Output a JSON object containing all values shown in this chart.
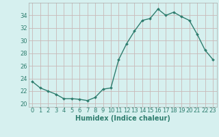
{
  "x": [
    0,
    1,
    2,
    3,
    4,
    5,
    6,
    7,
    8,
    9,
    10,
    11,
    12,
    13,
    14,
    15,
    16,
    17,
    18,
    19,
    20,
    21,
    22,
    23
  ],
  "y": [
    23.5,
    22.5,
    22.0,
    21.5,
    20.8,
    20.8,
    20.7,
    20.5,
    21.0,
    22.3,
    22.5,
    27.0,
    29.5,
    31.5,
    33.2,
    33.5,
    35.0,
    34.0,
    34.5,
    33.8,
    33.2,
    31.0,
    28.5,
    27.0
  ],
  "line_color": "#2e7d6e",
  "marker": "D",
  "marker_size": 2.0,
  "bg_color": "#d6f0ef",
  "grid_color_h": "#c8b8b8",
  "grid_color_v": "#c8b8b8",
  "tick_color": "#2e7d6e",
  "xlabel": "Humidex (Indice chaleur)",
  "xlabel_fontsize": 7,
  "ylim": [
    19.5,
    36
  ],
  "yticks": [
    20,
    22,
    24,
    26,
    28,
    30,
    32,
    34
  ],
  "xticks": [
    0,
    1,
    2,
    3,
    4,
    5,
    6,
    7,
    8,
    9,
    10,
    11,
    12,
    13,
    14,
    15,
    16,
    17,
    18,
    19,
    20,
    21,
    22,
    23
  ],
  "xtick_labels": [
    "0",
    "1",
    "2",
    "3",
    "4",
    "5",
    "6",
    "7",
    "8",
    "9",
    "10",
    "11",
    "12",
    "13",
    "14",
    "15",
    "16",
    "17",
    "18",
    "19",
    "20",
    "21",
    "22",
    "23"
  ],
  "line_width": 1.0,
  "tick_fontsize": 6.0
}
